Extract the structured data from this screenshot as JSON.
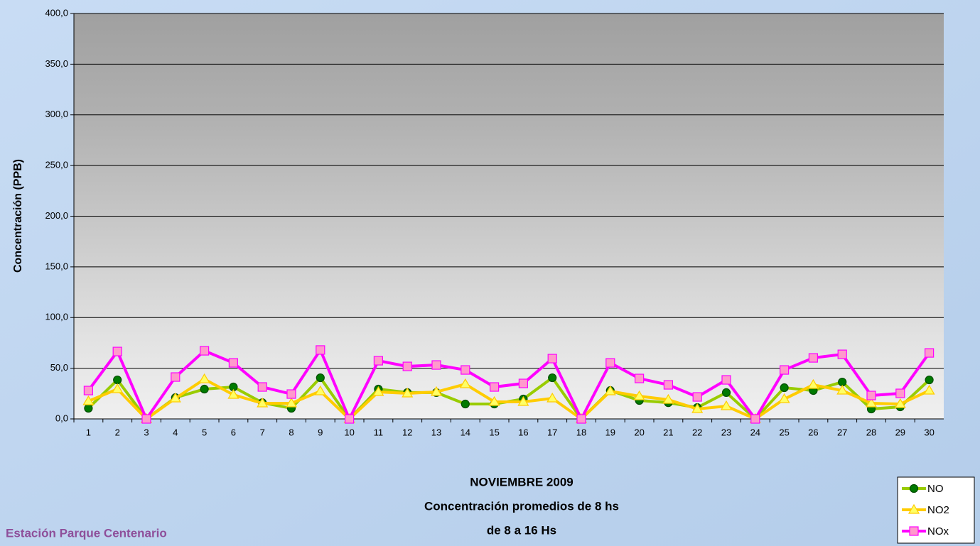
{
  "chart_data": {
    "type": "line",
    "title": [
      "NOVIEMBRE 2009",
      "Concentración promedios de 8 hs",
      "de 8 a 16 Hs"
    ],
    "annotation": "Estación Parque Centenario",
    "y_label": "Concentración (PPB)",
    "categories": [
      "1",
      "2",
      "3",
      "4",
      "5",
      "6",
      "7",
      "8",
      "9",
      "10",
      "11",
      "12",
      "13",
      "14",
      "15",
      "16",
      "17",
      "18",
      "19",
      "20",
      "21",
      "22",
      "23",
      "24",
      "25",
      "26",
      "27",
      "28",
      "29",
      "30"
    ],
    "series": [
      {
        "name": "NO",
        "color": "#99cc00",
        "marker": "circle",
        "marker_color": "#007a00",
        "values": [
          10.5,
          38.5,
          0,
          21,
          29.4,
          31.5,
          16,
          10.5,
          40.6,
          0,
          29.4,
          26,
          26,
          14.7,
          14.7,
          19.6,
          40.6,
          0,
          28,
          18.2,
          16,
          11.2,
          26,
          0,
          30.8,
          28,
          36.4,
          9.8,
          11.9,
          38.5
        ]
      },
      {
        "name": "NO2",
        "color": "#ffcc00",
        "marker": "triangle",
        "marker_color": "#ffff66",
        "values": [
          17.5,
          29.4,
          0,
          20.3,
          39.2,
          23.8,
          15.4,
          15.4,
          27.3,
          0,
          26.6,
          25.2,
          26.6,
          34.3,
          16.8,
          16.8,
          20.3,
          0,
          27.3,
          22.4,
          18.9,
          9.8,
          12.6,
          0,
          19.6,
          33.6,
          28,
          15.4,
          14.7,
          28
        ]
      },
      {
        "name": "NOx",
        "color": "#ff00ff",
        "marker": "square",
        "marker_color": "#ff99cc",
        "values": [
          28,
          66.5,
          0,
          41.3,
          67.2,
          55.3,
          31.5,
          24.5,
          68,
          0,
          57.4,
          51.8,
          53.2,
          48.3,
          31.5,
          35,
          59.5,
          0,
          55.3,
          39.9,
          33.6,
          21.7,
          38.5,
          0,
          48.3,
          60.2,
          63.7,
          23.1,
          25.2,
          65.1
        ]
      }
    ],
    "ylim": [
      0,
      400
    ],
    "yticks": [
      {
        "value": 0,
        "label": "0,0"
      },
      {
        "value": 50,
        "label": "50,0"
      },
      {
        "value": 100,
        "label": "100,0"
      },
      {
        "value": 150,
        "label": "150,0"
      },
      {
        "value": 200,
        "label": "200,0"
      },
      {
        "value": 250,
        "label": "250,0"
      },
      {
        "value": 300,
        "label": "300,0"
      },
      {
        "value": 350,
        "label": "350,0"
      },
      {
        "value": 400,
        "label": "400,0"
      }
    ],
    "grid": true,
    "legend": "bottom-right"
  }
}
